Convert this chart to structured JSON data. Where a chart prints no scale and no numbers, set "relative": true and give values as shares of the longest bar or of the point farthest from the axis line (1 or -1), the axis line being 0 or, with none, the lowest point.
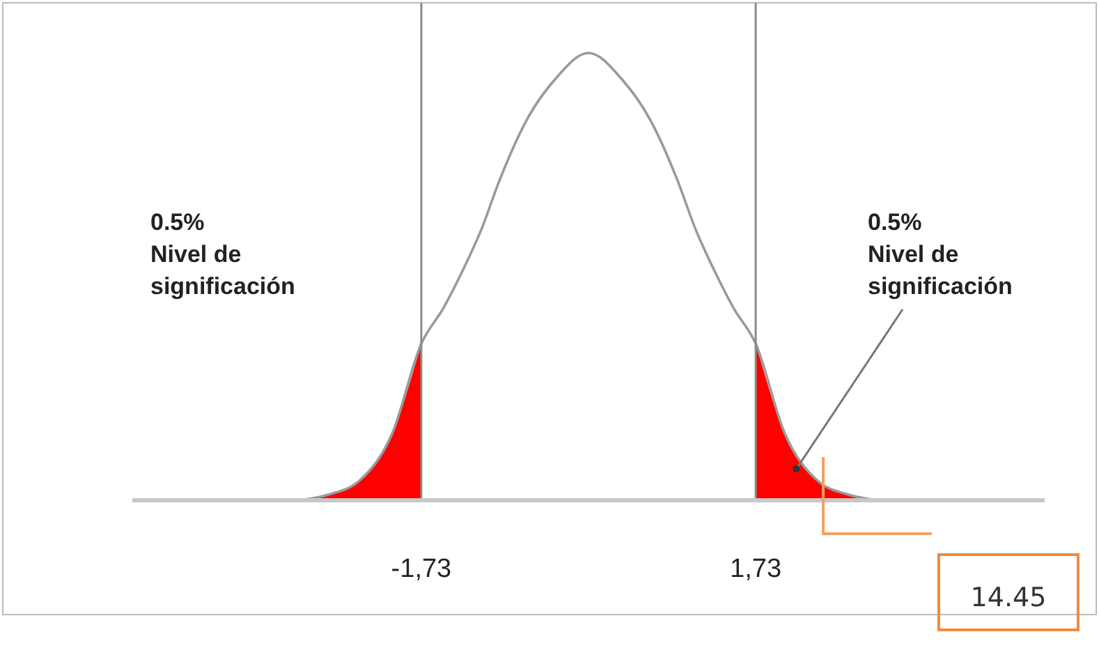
{
  "chart_data": {
    "type": "line",
    "relative": true,
    "xlim": [
      -4.72,
      4.72
    ],
    "xticks": [
      {
        "value": -1.73,
        "label": "-1,73"
      },
      {
        "value": 1.73,
        "label": "1,73"
      }
    ],
    "line_style": "solid",
    "series": [
      {
        "type": "area",
        "color": "#ff0000",
        "x": [
          -3.0,
          -2.7,
          -2.37,
          -2.03,
          -1.73
        ],
        "values": [
          0,
          0.012,
          0.044,
          0.15,
          0.35
        ]
      },
      {
        "type": "area",
        "color": "#ff0000",
        "x": [
          1.73,
          2.03,
          2.37,
          2.7,
          3.0
        ],
        "values": [
          0.35,
          0.15,
          0.044,
          0.012,
          0
        ]
      },
      {
        "color": "#9a9a9a",
        "x": [
          -3.0,
          -2.7,
          -2.37,
          -2.03,
          -1.73,
          -1.5,
          -1.31,
          -1.1,
          -0.93,
          -0.64,
          -0.35,
          0,
          0.35,
          0.64,
          0.93,
          1.1,
          1.31,
          1.5,
          1.73,
          2.03,
          2.37,
          2.7,
          3.0
        ],
        "values": [
          0,
          0.012,
          0.044,
          0.15,
          0.35,
          0.43,
          0.51,
          0.61,
          0.71,
          0.85,
          0.94,
          1,
          0.94,
          0.85,
          0.71,
          0.61,
          0.51,
          0.43,
          0.35,
          0.15,
          0.044,
          0.012,
          0
        ]
      }
    ],
    "ref_lines": [
      {
        "axis": "x",
        "value": -1.73,
        "color": "#8a8a8a"
      },
      {
        "axis": "x",
        "value": 1.73,
        "color": "#8a8a8a"
      }
    ],
    "annotations": [
      "0.5%\nNivel de\nsignificación",
      {
        "text": "0.5%\nNivel de\nsignificación",
        "x": 2.15,
        "y": 0.07
      },
      "14.45"
    ]
  }
}
